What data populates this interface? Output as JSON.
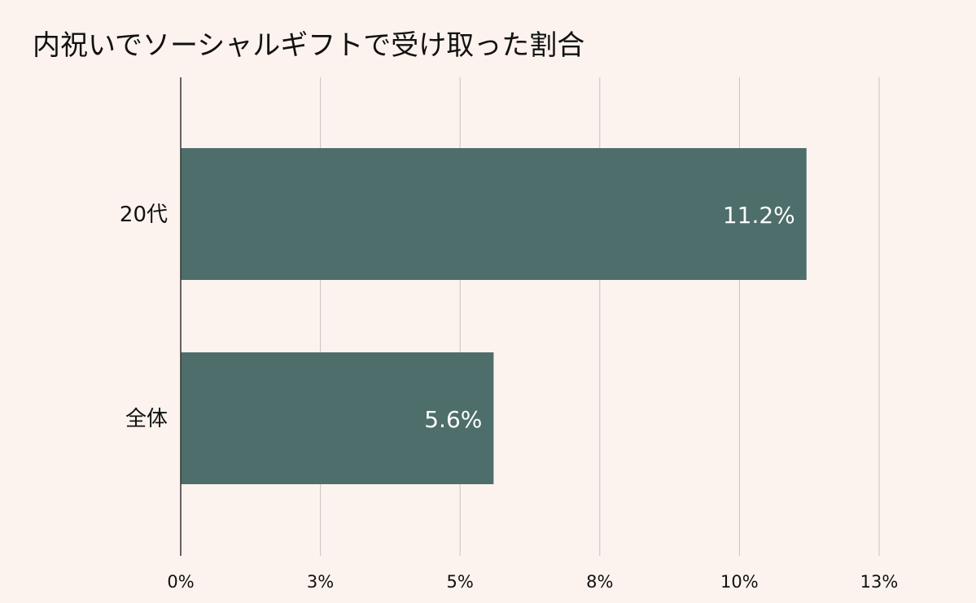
{
  "colors": {
    "background": "#fcf3ee",
    "bar": "#4d6e6a",
    "gridline": "#c8c2be",
    "axis": "#333333",
    "text": "#111111",
    "data_label": "#ffffff"
  },
  "chart_data": {
    "type": "bar",
    "orientation": "horizontal",
    "title": "内祝いでソーシャルギフトで受け取った割合",
    "xlabel": "",
    "ylabel": "",
    "categories": [
      "20代",
      "全体"
    ],
    "values": [
      11.2,
      5.6
    ],
    "data_labels": [
      "11.2%",
      "5.6%"
    ],
    "xlim": [
      0,
      12.5
    ],
    "x_ticks": [
      0,
      2.5,
      5,
      7.5,
      10,
      12.5
    ],
    "x_tick_labels": [
      "0%",
      "3%",
      "5%",
      "8%",
      "10%",
      "13%"
    ],
    "grid": true,
    "legend": "none"
  }
}
